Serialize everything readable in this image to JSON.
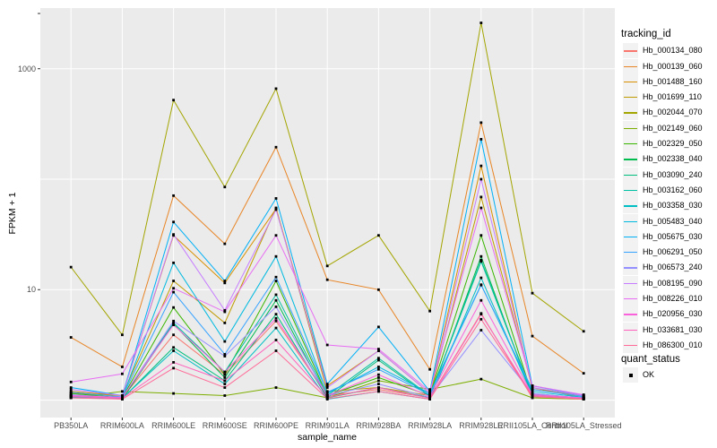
{
  "chart_data": {
    "type": "line",
    "title": "",
    "xlabel": "sample_name",
    "ylabel": "FPKM + 1",
    "y_scale": "log10",
    "ylim": [
      0.9,
      3500
    ],
    "grid": true,
    "legend_position": "right",
    "panel_bg": "#EBEBEB",
    "grid_color": "#FFFFFF",
    "tick_color": "#333333",
    "tick_label_color": "#4d4d4d",
    "point_color": "#000000",
    "y_ticks": [
      {
        "value": 3162,
        "label": ""
      },
      {
        "value": 1000,
        "label": "1000"
      },
      {
        "value": 10,
        "label": "10"
      }
    ],
    "y_gridlines": [
      1,
      10,
      100,
      1000
    ],
    "categories": [
      "PB350LA",
      "RRIM600LA",
      "RRIM600LE",
      "RRIM600SE",
      "RRIM600PE",
      "RRIM901LA",
      "RRIM928BA",
      "RRIM928LA",
      "RRIM928LE",
      "RRII105LA_Control",
      "RRII105LA_Stressed"
    ],
    "legend_title": "tracking_id",
    "quant_legend_title": "quant_status",
    "quant_legend_items": [
      "OK"
    ],
    "series": [
      {
        "name": "Hb_000134_080",
        "color": "#F8766D",
        "values": [
          1.1,
          1.05,
          3.9,
          1.7,
          5.2,
          1.1,
          1.25,
          1.05,
          6.1,
          1.05,
          1.02
        ]
      },
      {
        "name": "Hb_000139_060",
        "color": "#E88526",
        "values": [
          3.7,
          2.0,
          71,
          26,
          195,
          12.3,
          10,
          1.9,
          325,
          3.8,
          1.75
        ]
      },
      {
        "name": "Hb_001488_160",
        "color": "#D89000",
        "values": [
          1.2,
          1.1,
          31,
          11.5,
          54,
          1.35,
          2.8,
          1.15,
          132,
          1.25,
          1.1
        ]
      },
      {
        "name": "Hb_001699_110",
        "color": "#C09B00",
        "values": [
          1.15,
          1.1,
          12,
          5.0,
          55,
          1.2,
          1.3,
          1.1,
          69,
          1.3,
          1.05
        ]
      },
      {
        "name": "Hb_002044_070",
        "color": "#A3A500",
        "values": [
          16,
          3.9,
          520,
          85,
          660,
          16.4,
          31,
          6.4,
          2600,
          9.3,
          4.2
        ]
      },
      {
        "name": "Hb_002149_060",
        "color": "#7CAE00",
        "values": [
          1.05,
          1.2,
          1.15,
          1.1,
          1.3,
          1.05,
          1.5,
          1.25,
          1.55,
          1.05,
          1.02
        ]
      },
      {
        "name": "Hb_002329_050",
        "color": "#39B600",
        "values": [
          1.15,
          1.05,
          6.9,
          1.7,
          12,
          1.1,
          1.6,
          1.1,
          31,
          1.1,
          1.05
        ]
      },
      {
        "name": "Hb_002338_040",
        "color": "#00BB4E",
        "values": [
          1.1,
          1.02,
          4.9,
          1.6,
          8.0,
          1.05,
          1.3,
          1.05,
          20,
          1.08,
          1.03
        ]
      },
      {
        "name": "Hb_003090_240",
        "color": "#00BF7D",
        "values": [
          1.05,
          1.03,
          3.0,
          1.5,
          6.0,
          1.05,
          2.3,
          1.08,
          18.5,
          1.12,
          1.05
        ]
      },
      {
        "name": "Hb_003162_060",
        "color": "#00C1A3",
        "values": [
          1.08,
          1.05,
          5.0,
          1.8,
          9.0,
          1.1,
          2.4,
          1.1,
          18,
          1.15,
          1.04
        ]
      },
      {
        "name": "Hb_003358_030",
        "color": "#00BFC4",
        "values": [
          1.06,
          1.04,
          2.8,
          1.4,
          4.5,
          1.02,
          1.2,
          1.02,
          12.8,
          1.1,
          1.03
        ]
      },
      {
        "name": "Hb_005483_040",
        "color": "#00BAE0",
        "values": [
          1.1,
          1.06,
          17.5,
          3.4,
          20,
          1.15,
          2.0,
          1.15,
          11.1,
          1.2,
          1.06
        ]
      },
      {
        "name": "Hb_005675_030",
        "color": "#00B0F6",
        "values": [
          1.3,
          1.1,
          41,
          12,
          67,
          1.4,
          4.6,
          1.2,
          230,
          1.35,
          1.1
        ]
      },
      {
        "name": "Hb_006291_050",
        "color": "#35A2FF",
        "values": [
          1.18,
          1.07,
          9.5,
          2.6,
          13,
          1.18,
          1.9,
          1.12,
          11,
          1.25,
          1.08
        ]
      },
      {
        "name": "Hb_006573_240",
        "color": "#9590FF",
        "values": [
          1.12,
          1.05,
          5.2,
          2.5,
          7.0,
          1.1,
          1.4,
          1.06,
          4.3,
          1.15,
          1.04
        ]
      },
      {
        "name": "Hb_008195_090",
        "color": "#C77CFF",
        "values": [
          1.25,
          1.1,
          31.6,
          6.5,
          53,
          1.3,
          2.8,
          1.15,
          100,
          1.3,
          1.1
        ]
      },
      {
        "name": "Hb_008226_010",
        "color": "#E76BF3",
        "values": [
          1.46,
          1.73,
          10.3,
          6.3,
          31,
          3.16,
          2.9,
          1.2,
          55,
          1.35,
          1.12
        ]
      },
      {
        "name": "Hb_020956_030",
        "color": "#FA62DB",
        "values": [
          1.1,
          1.06,
          4.8,
          1.8,
          5.5,
          1.1,
          1.7,
          1.08,
          8.0,
          1.12,
          1.05
        ]
      },
      {
        "name": "Hb_033681_030",
        "color": "#FF62BC",
        "values": [
          1.08,
          1.04,
          2.2,
          1.5,
          3.5,
          1.06,
          1.3,
          1.04,
          6.0,
          1.1,
          1.03
        ]
      },
      {
        "name": "Hb_086300_010",
        "color": "#FF6A98",
        "values": [
          1.05,
          1.02,
          1.95,
          1.3,
          2.8,
          1.03,
          1.2,
          1.02,
          5.4,
          1.08,
          1.02
        ]
      }
    ]
  }
}
